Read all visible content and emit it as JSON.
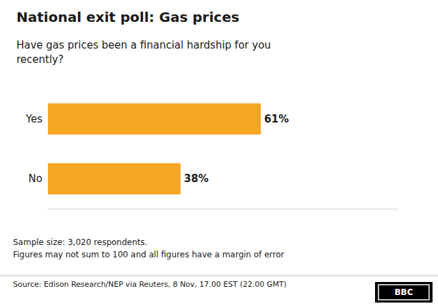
{
  "chart_data": {
    "type": "bar",
    "orientation": "horizontal",
    "title": "National exit poll: Gas prices",
    "subtitle": "Have gas prices been a financial hardship for you\nrecently?",
    "categories": [
      "Yes",
      "No"
    ],
    "values": [
      61,
      38
    ],
    "value_labels": [
      "61%",
      "38%"
    ],
    "data_labels": true,
    "color": "#F5A623",
    "xlim": [
      0,
      100
    ],
    "grid": false,
    "tick_labels": "y",
    "annotations": [
      "Sample size: 3,020 respondents.",
      "Figures may not sum to 100 and all figures have a margin of error",
      "Source: Edison Research/NEP via Reuters, 8 Nov, 17.00 EST (22.00 GMT)",
      "BBC"
    ]
  }
}
